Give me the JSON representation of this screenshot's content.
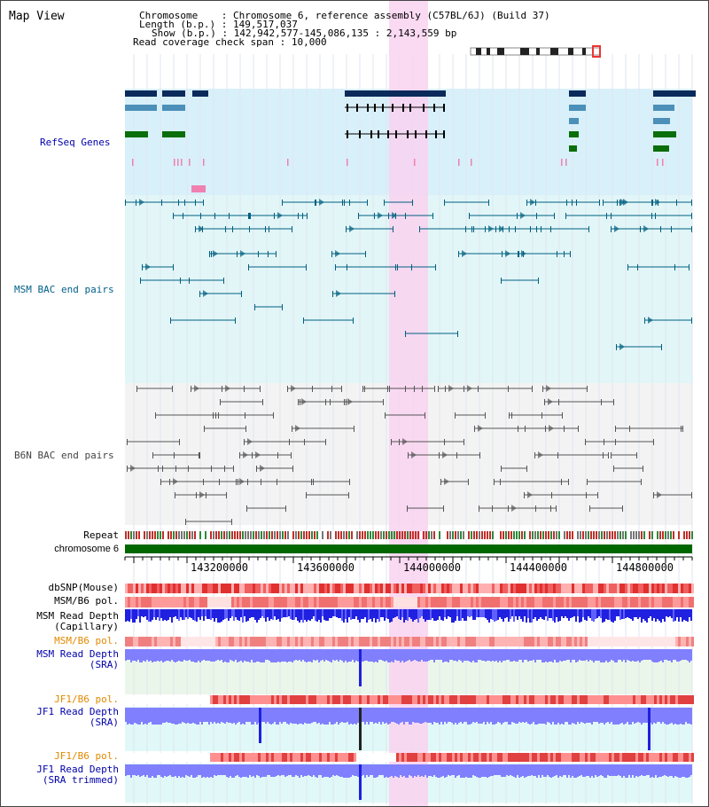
{
  "page": {
    "title": "Map View"
  },
  "info": {
    "chromosome_key": "Chromosome",
    "chromosome_val": "Chromosome 6, reference assembly (C57BL/6J) (Build 37)",
    "length_key": "Length (b.p.)",
    "length_val": "149,517,037",
    "show_key": "Show (b.p.)",
    "show_val": "142,942,577-145,086,135 : 2,143,559 bp",
    "coverage_key": "Read coverage check span",
    "coverage_val": "10,000"
  },
  "tracks": {
    "refseq": {
      "label": "RefSeq Genes",
      "color": "#0000aa"
    },
    "msm_bac": {
      "label": "MSM BAC end pairs",
      "color": "#005f88"
    },
    "b6n_bac": {
      "label": "B6N BAC end pairs",
      "color": "#444444"
    },
    "repeat": {
      "label": "Repeat"
    },
    "chromosome": {
      "label": "chromosome 6"
    },
    "dbsnp": {
      "label": "dbSNP(Mouse)"
    },
    "msm_b6_pol_1": {
      "label": "MSM/B6 pol."
    },
    "msm_read_depth_cap": {
      "line1": "MSM Read Depth",
      "line2": "(Capillary)"
    },
    "msm_b6_pol_2": {
      "label": "MSM/B6 pol.",
      "color": "#e08a00"
    },
    "msm_read_depth_sra": {
      "line1": "MSM Read Depth",
      "line2": "(SRA)",
      "color": "#0000aa"
    },
    "jf1_b6_pol_1": {
      "label": "JF1/B6 pol.",
      "color": "#e08a00"
    },
    "jf1_read_depth_sra": {
      "line1": "JF1 Read Depth",
      "line2": "(SRA)",
      "color": "#0000aa"
    },
    "jf1_b6_pol_2": {
      "label": "JF1/B6 pol.",
      "color": "#e08a00"
    },
    "jf1_read_depth_trim": {
      "line1": "JF1 Read Depth",
      "line2": "(SRA trimmed)",
      "color": "#0000aa"
    }
  },
  "ruler": {
    "ticks": [
      "143200000",
      "143600000",
      "144000000",
      "144400000",
      "144800000"
    ]
  },
  "colors": {
    "highlight": "#f9d2f0",
    "refseq_bg": "#d8f0fa",
    "msm_bg": "#e2f6f8",
    "b6n_bg": "#f3f3f3",
    "gene_dark": "#0a2a5c",
    "gene_mid": "#4c8fb8",
    "gene_green": "#0a6e0a",
    "depth_blue": "#2020e0",
    "depth_light": "#8080ff",
    "chromosome_green": "#006600"
  }
}
